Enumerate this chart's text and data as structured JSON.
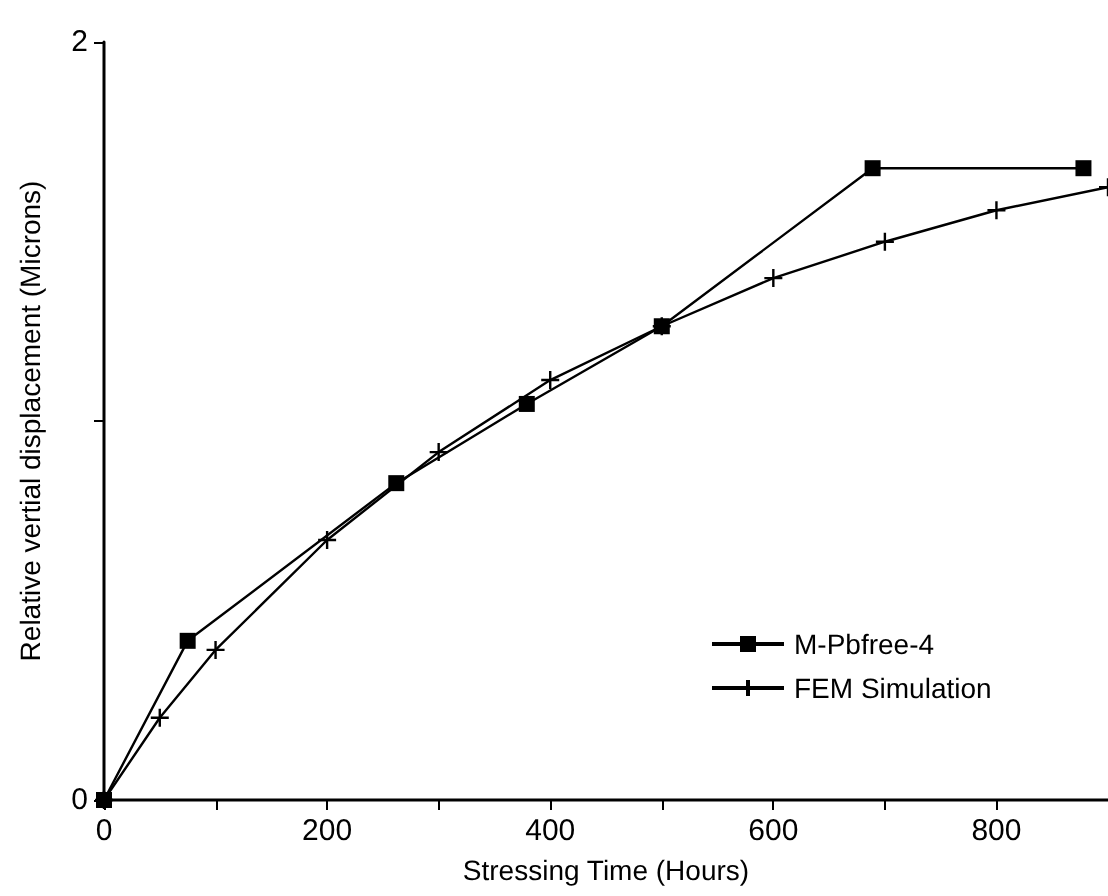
{
  "chart_data": {
    "type": "line",
    "xlabel": "Stressing Time (Hours)",
    "ylabel": "Relative vertial displacement (Microns)",
    "xlim": [
      0,
      900
    ],
    "ylim": [
      0,
      2
    ],
    "xticks": [
      0,
      {
        "value": 100,
        "label": null
      },
      200,
      {
        "value": 300,
        "label": null
      },
      400,
      {
        "value": 500,
        "label": null
      },
      600,
      {
        "value": 700,
        "label": null
      },
      800
    ],
    "yticks": [
      0,
      {
        "value": 1,
        "label": null
      },
      2
    ],
    "grid": false,
    "legend": "right",
    "line_style": "solid",
    "series": [
      {
        "name": "M-Pbfree-4",
        "color": "#000000",
        "marker": "square",
        "x": [
          0,
          75,
          262,
          379,
          500,
          689,
          878
        ],
        "values": [
          0,
          0.42,
          0.836,
          1.045,
          1.25,
          1.667,
          1.667
        ]
      },
      {
        "name": "FEM Simulation",
        "color": "#000000",
        "marker": "cross",
        "x": [
          0,
          50,
          100,
          200,
          300,
          400,
          500,
          600,
          700,
          800,
          900
        ],
        "values": [
          0,
          0.217,
          0.396,
          0.686,
          0.918,
          1.108,
          1.25,
          1.377,
          1.473,
          1.556,
          1.617
        ]
      }
    ]
  }
}
